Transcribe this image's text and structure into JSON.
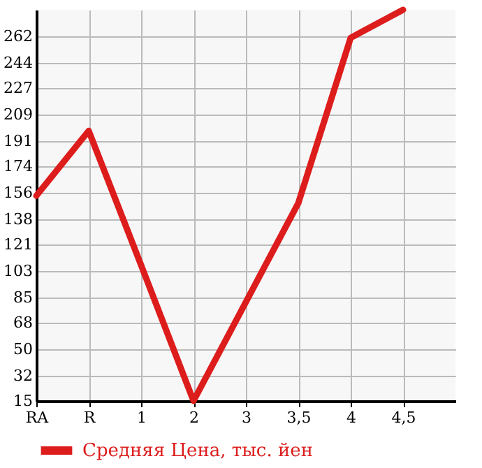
{
  "chart_data": {
    "type": "line",
    "categories": [
      "RA",
      "R",
      "1",
      "2",
      "3",
      "3,5",
      "4",
      "4,5"
    ],
    "series": [
      {
        "name": "Средняя Цена, тыс. йен",
        "color": "#dd1c1c",
        "values": [
          154,
          198,
          107,
          15,
          82,
          149,
          261,
          280
        ]
      }
    ],
    "ylim": [
      15,
      280
    ],
    "yticks": [
      15,
      32,
      50,
      68,
      85,
      103,
      121,
      138,
      156,
      174,
      191,
      209,
      227,
      244,
      262
    ],
    "grid": true,
    "legend": "bottom left"
  }
}
